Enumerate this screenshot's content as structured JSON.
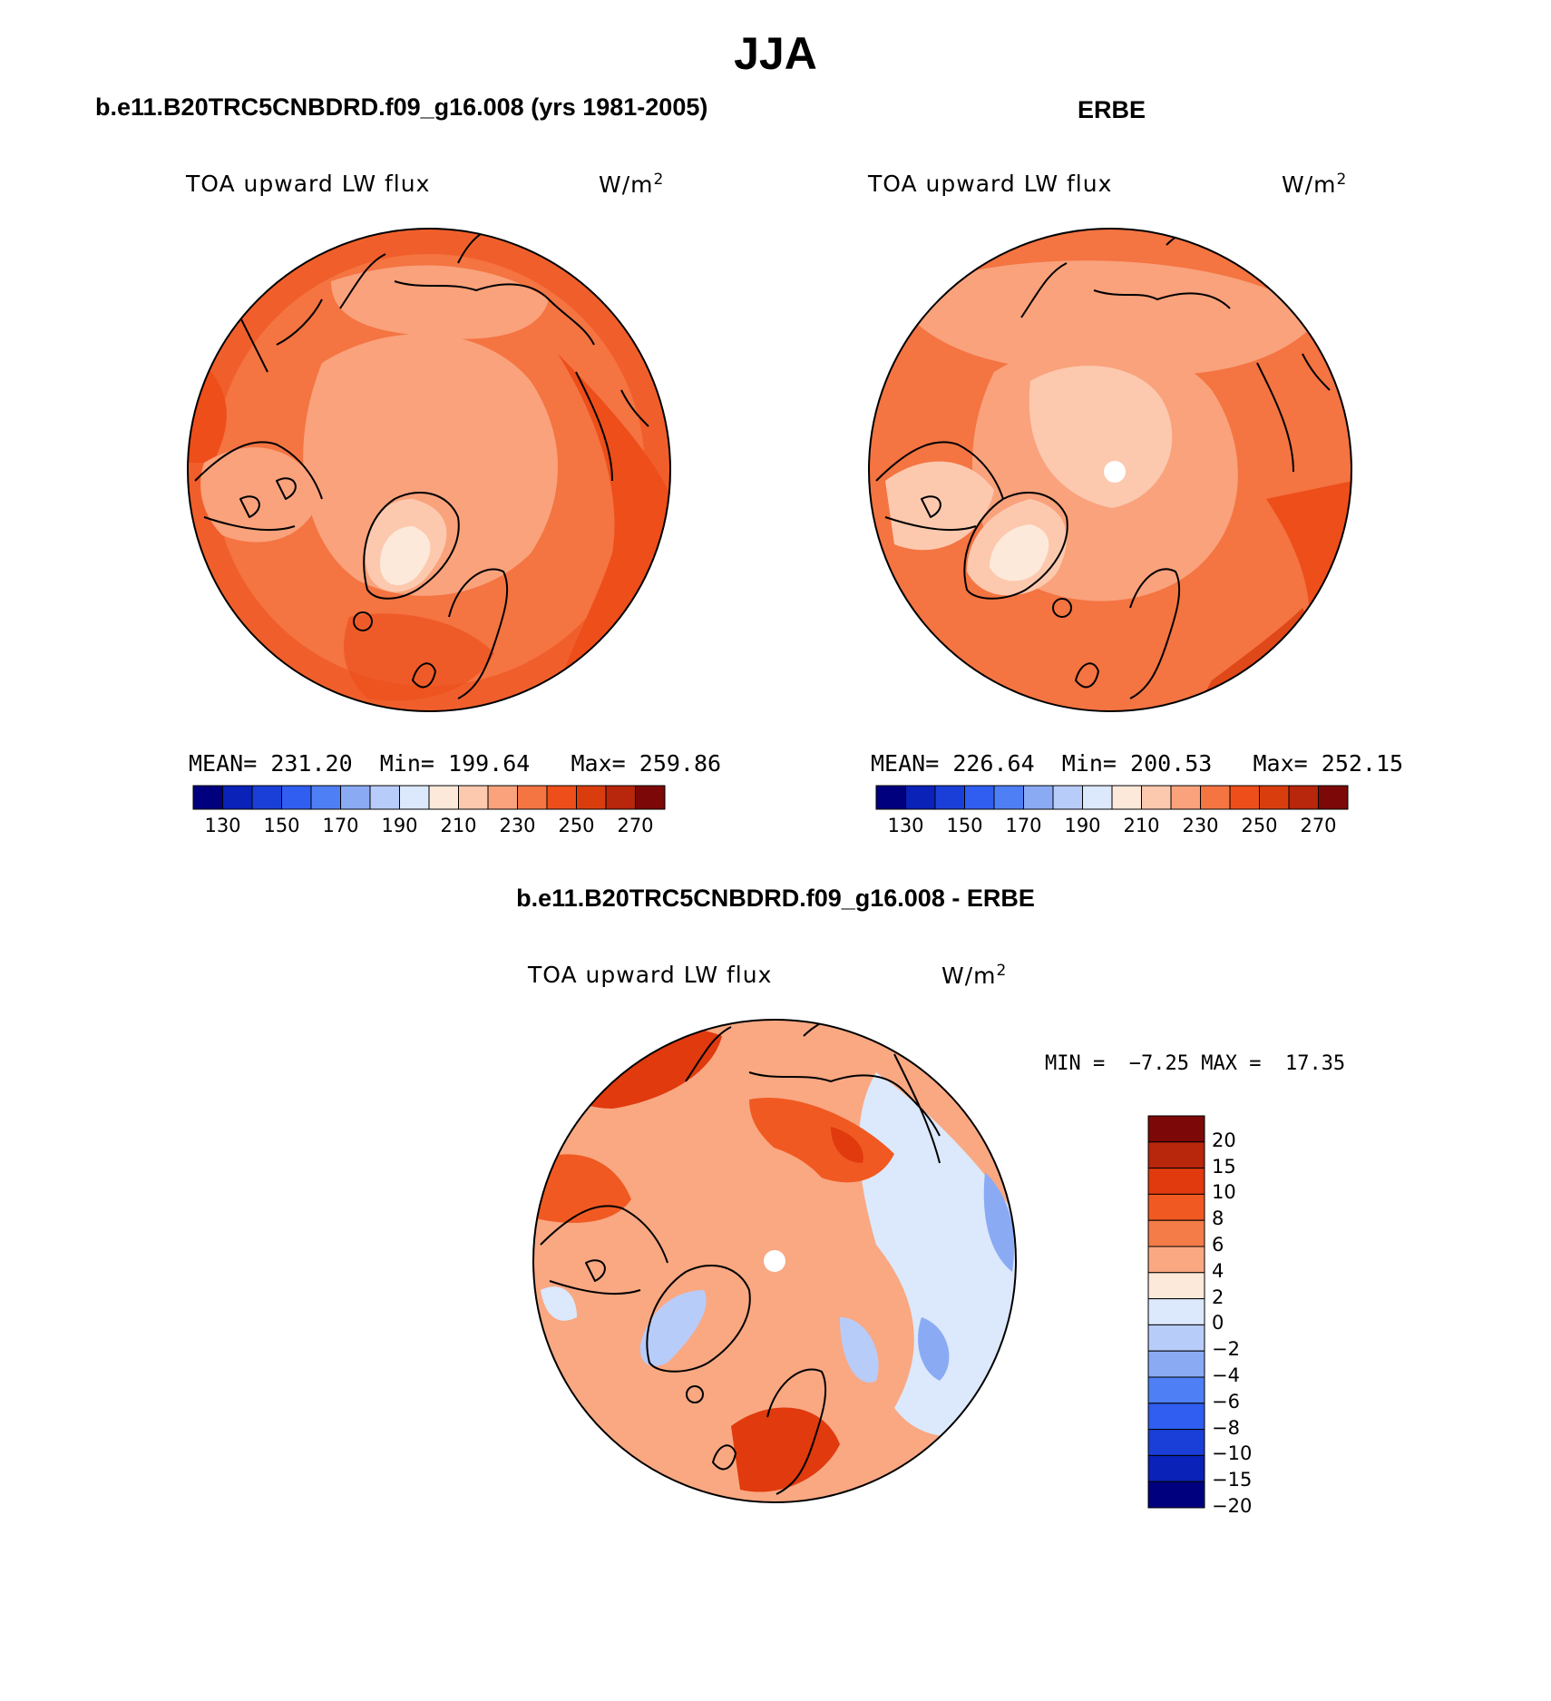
{
  "figure": {
    "title": "JJA"
  },
  "panels": [
    {
      "id": "model",
      "header": "b.e11.B20TRC5CNBDRD.f09_g16.008 (yrs 1981-2005)",
      "variable": "TOA upward LW flux",
      "unit_base": "W/m",
      "unit_exp": "2",
      "stats": {
        "mean_label": "MEAN=",
        "mean": "231.20",
        "min_label": "Min=",
        "min": "199.64",
        "max_label": "Max=",
        "max": "259.86"
      },
      "colorbar_labels": [
        "130",
        "150",
        "170",
        "190",
        "210",
        "230",
        "250",
        "270"
      ]
    },
    {
      "id": "obs",
      "header": "ERBE",
      "variable": "TOA upward LW flux",
      "unit_base": "W/m",
      "unit_exp": "2",
      "stats": {
        "mean_label": "MEAN=",
        "mean": "226.64",
        "min_label": "Min=",
        "min": "200.53",
        "max_label": "Max=",
        "max": "252.15"
      },
      "colorbar_labels": [
        "130",
        "150",
        "170",
        "190",
        "210",
        "230",
        "250",
        "270"
      ]
    },
    {
      "id": "diff",
      "header": "b.e11.B20TRC5CNBDRD.f09_g16.008 - ERBE",
      "variable": "TOA upward LW flux",
      "unit_base": "W/m",
      "unit_exp": "2",
      "minmax": {
        "min_label": "MIN =",
        "min": "−7.25",
        "max_label": "MAX =",
        "max": "17.35"
      },
      "colorbar_labels": [
        "20",
        "15",
        "10",
        "8",
        "6",
        "4",
        "2",
        "0",
        "−2",
        "−4",
        "−6",
        "−8",
        "−10",
        "−15",
        "−20"
      ]
    }
  ],
  "colors": {
    "abs_scale": [
      "#00007f",
      "#0a22b8",
      "#1a3fd8",
      "#2f5ef0",
      "#4f7ff5",
      "#8aaaf4",
      "#b8ccfa",
      "#dce8fb",
      "#fde9da",
      "#fcc9ae",
      "#f9a27c",
      "#f47442",
      "#ed4e1a",
      "#d93d0e",
      "#b8260b",
      "#7d0808"
    ],
    "diff_scale": [
      "#7d0808",
      "#b8260b",
      "#e03a0e",
      "#f05a22",
      "#f47c48",
      "#f9a882",
      "#fde9da",
      "#dce8fb",
      "#b8ccfa",
      "#8aaaf4",
      "#4f7ff5",
      "#2f5ef0",
      "#1a3fd8",
      "#0a22b8",
      "#00007f"
    ],
    "land_outline": "#000000",
    "missing": "#ffffff"
  }
}
